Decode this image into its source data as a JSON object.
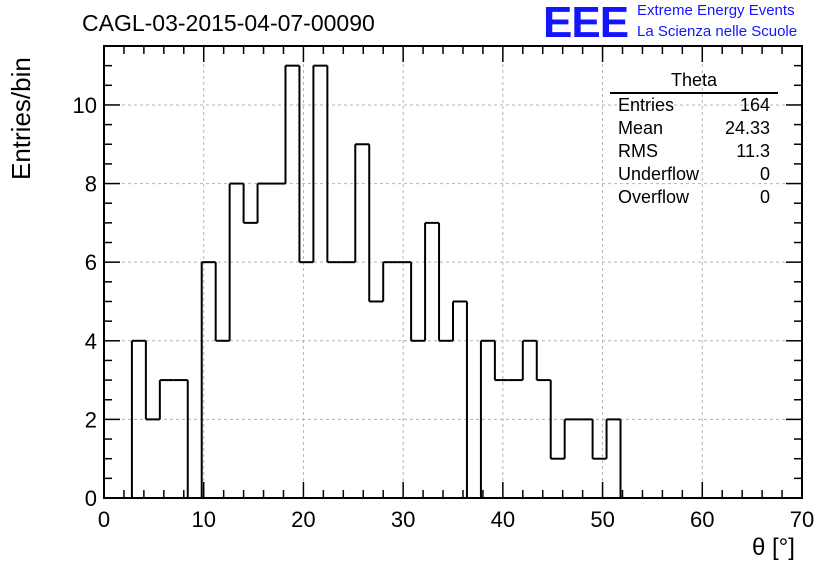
{
  "title": "CAGL-03-2015-04-07-00090",
  "logo": {
    "letters": "EEE",
    "line1": "Extreme Energy Events",
    "line2": "La Scienza nelle Scuole",
    "color": "#1414ff"
  },
  "stats": {
    "name": "Theta",
    "rows": [
      {
        "label": "Entries",
        "value": "164"
      },
      {
        "label": "Mean",
        "value": "24.33"
      },
      {
        "label": "RMS",
        "value": "11.3"
      },
      {
        "label": "Underflow",
        "value": "0"
      },
      {
        "label": "Overflow",
        "value": "0"
      }
    ]
  },
  "chart_data": {
    "type": "bar",
    "title": "CAGL-03-2015-04-07-00090",
    "xlabel": "θ [°]",
    "ylabel": "Entries/bin",
    "xlim": [
      0,
      70
    ],
    "ylim": [
      0,
      11.5
    ],
    "grid": true,
    "bin_width": 1.4,
    "bins": [
      {
        "x": 2.8,
        "value": 4
      },
      {
        "x": 4.2,
        "value": 2
      },
      {
        "x": 5.6,
        "value": 3
      },
      {
        "x": 7.0,
        "value": 3
      },
      {
        "x": 8.4,
        "value": 0
      },
      {
        "x": 9.8,
        "value": 6
      },
      {
        "x": 11.2,
        "value": 4
      },
      {
        "x": 12.6,
        "value": 8
      },
      {
        "x": 14.0,
        "value": 7
      },
      {
        "x": 15.4,
        "value": 8
      },
      {
        "x": 16.8,
        "value": 8
      },
      {
        "x": 18.2,
        "value": 11
      },
      {
        "x": 19.6,
        "value": 6
      },
      {
        "x": 21.0,
        "value": 11
      },
      {
        "x": 22.4,
        "value": 6
      },
      {
        "x": 23.8,
        "value": 6
      },
      {
        "x": 25.2,
        "value": 9
      },
      {
        "x": 26.6,
        "value": 5
      },
      {
        "x": 28.0,
        "value": 6
      },
      {
        "x": 29.4,
        "value": 6
      },
      {
        "x": 30.8,
        "value": 4
      },
      {
        "x": 32.2,
        "value": 7
      },
      {
        "x": 33.6,
        "value": 4
      },
      {
        "x": 35.0,
        "value": 5
      },
      {
        "x": 36.4,
        "value": 0
      },
      {
        "x": 37.8,
        "value": 4
      },
      {
        "x": 39.2,
        "value": 3
      },
      {
        "x": 40.6,
        "value": 3
      },
      {
        "x": 42.0,
        "value": 4
      },
      {
        "x": 43.4,
        "value": 3
      },
      {
        "x": 44.8,
        "value": 1
      },
      {
        "x": 46.2,
        "value": 2
      },
      {
        "x": 47.6,
        "value": 2
      },
      {
        "x": 49.0,
        "value": 1
      },
      {
        "x": 50.4,
        "value": 2
      }
    ],
    "xticks": [
      0,
      10,
      20,
      30,
      40,
      50,
      60,
      70
    ],
    "yticks": [
      0,
      2,
      4,
      6,
      8,
      10
    ],
    "line_color": "#000000",
    "grid_color": "#b4b4b4"
  }
}
